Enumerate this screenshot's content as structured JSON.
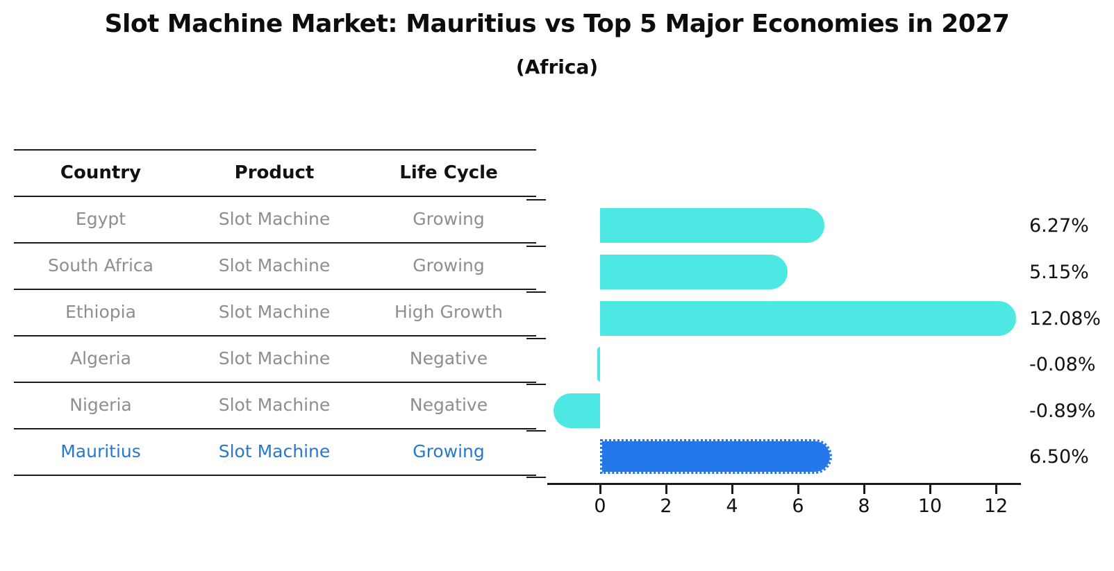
{
  "title": "Slot Machine Market: Mauritius vs Top 5 Major Economies in 2027",
  "subtitle": "(Africa)",
  "table": {
    "headers": [
      "Country",
      "Product",
      "Life Cycle"
    ],
    "rows": [
      {
        "country": "Egypt",
        "product": "Slot Machine",
        "life_cycle": "Growing",
        "highlight": false
      },
      {
        "country": "South Africa",
        "product": "Slot Machine",
        "life_cycle": "Growing",
        "highlight": false
      },
      {
        "country": "Ethiopia",
        "product": "Slot Machine",
        "life_cycle": "High Growth",
        "highlight": false
      },
      {
        "country": "Algeria",
        "product": "Slot Machine",
        "life_cycle": "Negative",
        "highlight": false
      },
      {
        "country": "Nigeria",
        "product": "Slot Machine",
        "life_cycle": "Negative",
        "highlight": false
      },
      {
        "country": "Mauritius",
        "product": "Slot Machine",
        "life_cycle": "Growing",
        "highlight": true
      }
    ]
  },
  "chart_data": {
    "type": "bar",
    "orientation": "horizontal",
    "title": "Slot Machine Market: Mauritius vs Top 5 Major Economies in 2027 (Africa)",
    "categories": [
      "Egypt",
      "South Africa",
      "Ethiopia",
      "Algeria",
      "Nigeria",
      "Mauritius"
    ],
    "values": [
      6.27,
      5.15,
      12.08,
      -0.08,
      -0.89,
      6.5
    ],
    "value_labels": [
      "6.27%",
      "5.15%",
      "12.08%",
      "-0.08%",
      "-0.89%",
      "6.50%"
    ],
    "x_ticks": [
      "0",
      "2",
      "4",
      "6",
      "8",
      "10",
      "12"
    ],
    "xlim": [
      -1.6,
      12.8
    ],
    "grid": false,
    "legend": false,
    "highlight_index": 5,
    "bar_color": "#4DE8E4",
    "highlight_color": "#2377E8"
  },
  "colors": {
    "bar_cyan": "#4DE8E4",
    "bar_blue": "#2377E8",
    "highlight_text_blue": "#2878CE",
    "muted_text_gray": "#8e8e8e",
    "axis_black": "#1a1a1a"
  }
}
